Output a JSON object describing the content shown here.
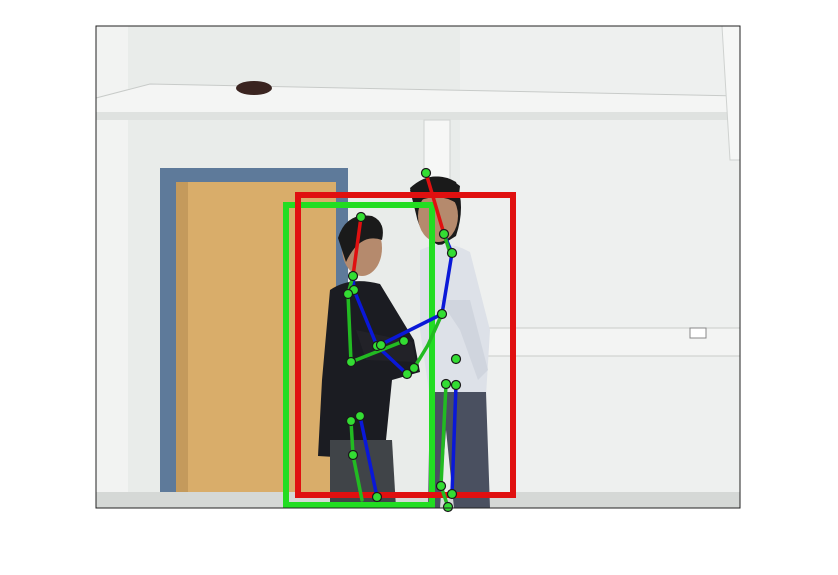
{
  "scene": {
    "description_hidden": "",
    "colors": {
      "figure_background": "#ffffff",
      "wall": "#e9ecea",
      "shelf": "#f4f5f4",
      "door_frame": "#5e7a9a",
      "door": "#d9ad6a",
      "floor_shadow": "#cfd3d1",
      "person_dark_shirt": "#1b1c22",
      "person_light_shirt": "#dde1e8",
      "skin": "#b58a6d",
      "hair": "#1a1a1a",
      "jeans": "#4a5060",
      "pants_dark": "#404448"
    }
  },
  "bounding_boxes": [
    {
      "name": "green-person-box",
      "color": "#22dd22"
    },
    {
      "name": "red-person-box",
      "color": "#e01010"
    }
  ],
  "skeleton_colors": {
    "head_neck": "#e01010",
    "left_limb": "#0a18d8",
    "right_limb": "#22bb22",
    "joint_fill": "#33dd33",
    "joint_stroke": "#1a1a1a"
  }
}
